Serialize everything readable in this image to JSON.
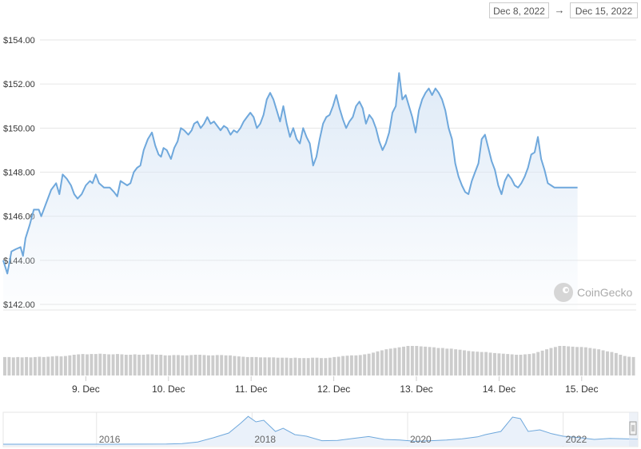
{
  "range_selector": {
    "start": "Dec 8, 2022",
    "arrow": "→",
    "end": "Dec 15, 2022"
  },
  "watermark": "CoinGecko",
  "colors": {
    "line": "#6fa8dc",
    "area_top": "#dbe8f6",
    "volume_bar": "#cccccc",
    "grid": "#e6e6e6",
    "navigator_line": "#6fa8dc"
  },
  "chart_data": {
    "type": "line",
    "title": "",
    "xlabel": "",
    "ylabel": "",
    "ylim": [
      142,
      155
    ],
    "y_ticks": [
      142,
      144,
      146,
      148,
      150,
      152,
      154
    ],
    "y_tick_labels": [
      "$142.00",
      "$144.00",
      "$146.00",
      "$148.00",
      "$150.00",
      "$152.00",
      "$154.00"
    ],
    "x_ticks": [
      {
        "day": 1,
        "label": "9. Dec"
      },
      {
        "day": 2,
        "label": "10. Dec"
      },
      {
        "day": 3,
        "label": "11. Dec"
      },
      {
        "day": 4,
        "label": "12. Dec"
      },
      {
        "day": 5,
        "label": "13. Dec"
      },
      {
        "day": 6,
        "label": "14. Dec"
      },
      {
        "day": 7,
        "label": "15. Dec"
      }
    ],
    "x_unit": "days after Dec 8, 2022 00:00",
    "series": [
      {
        "name": "Price",
        "points": [
          [
            0.0,
            144.0
          ],
          [
            0.05,
            143.4
          ],
          [
            0.1,
            144.4
          ],
          [
            0.15,
            144.5
          ],
          [
            0.21,
            144.6
          ],
          [
            0.24,
            144.2
          ],
          [
            0.27,
            145.0
          ],
          [
            0.32,
            145.6
          ],
          [
            0.37,
            146.3
          ],
          [
            0.43,
            146.3
          ],
          [
            0.46,
            146.0
          ],
          [
            0.52,
            146.6
          ],
          [
            0.58,
            147.2
          ],
          [
            0.64,
            147.5
          ],
          [
            0.68,
            147.0
          ],
          [
            0.72,
            147.9
          ],
          [
            0.77,
            147.7
          ],
          [
            0.82,
            147.4
          ],
          [
            0.86,
            147.0
          ],
          [
            0.9,
            146.8
          ],
          [
            0.95,
            147.0
          ],
          [
            1.0,
            147.4
          ],
          [
            1.05,
            147.6
          ],
          [
            1.08,
            147.5
          ],
          [
            1.12,
            147.9
          ],
          [
            1.16,
            147.5
          ],
          [
            1.19,
            147.4
          ],
          [
            1.22,
            147.3
          ],
          [
            1.25,
            147.3
          ],
          [
            1.29,
            147.3
          ],
          [
            1.34,
            147.1
          ],
          [
            1.38,
            146.9
          ],
          [
            1.42,
            147.6
          ],
          [
            1.46,
            147.5
          ],
          [
            1.5,
            147.4
          ],
          [
            1.54,
            147.5
          ],
          [
            1.58,
            148.0
          ],
          [
            1.62,
            148.2
          ],
          [
            1.66,
            148.3
          ],
          [
            1.7,
            149.0
          ],
          [
            1.75,
            149.5
          ],
          [
            1.8,
            149.8
          ],
          [
            1.84,
            149.2
          ],
          [
            1.88,
            148.8
          ],
          [
            1.91,
            148.7
          ],
          [
            1.94,
            149.1
          ],
          [
            1.98,
            149.0
          ],
          [
            2.03,
            148.6
          ],
          [
            2.07,
            149.1
          ],
          [
            2.11,
            149.4
          ],
          [
            2.15,
            150.0
          ],
          [
            2.19,
            149.9
          ],
          [
            2.24,
            149.7
          ],
          [
            2.28,
            149.9
          ],
          [
            2.31,
            150.2
          ],
          [
            2.35,
            150.3
          ],
          [
            2.39,
            150.0
          ],
          [
            2.43,
            150.2
          ],
          [
            2.47,
            150.5
          ],
          [
            2.51,
            150.2
          ],
          [
            2.55,
            150.3
          ],
          [
            2.59,
            150.1
          ],
          [
            2.63,
            149.9
          ],
          [
            2.67,
            150.1
          ],
          [
            2.71,
            150.0
          ],
          [
            2.75,
            149.7
          ],
          [
            2.79,
            149.9
          ],
          [
            2.83,
            149.8
          ],
          [
            2.87,
            150.0
          ],
          [
            2.91,
            150.3
          ],
          [
            2.95,
            150.5
          ],
          [
            2.99,
            150.7
          ],
          [
            3.03,
            150.5
          ],
          [
            3.07,
            150.0
          ],
          [
            3.11,
            150.2
          ],
          [
            3.15,
            150.6
          ],
          [
            3.19,
            151.3
          ],
          [
            3.23,
            151.6
          ],
          [
            3.27,
            151.3
          ],
          [
            3.31,
            150.8
          ],
          [
            3.35,
            150.3
          ],
          [
            3.39,
            151.0
          ],
          [
            3.43,
            150.2
          ],
          [
            3.47,
            149.6
          ],
          [
            3.51,
            150.0
          ],
          [
            3.55,
            149.5
          ],
          [
            3.59,
            149.3
          ],
          [
            3.63,
            150.0
          ],
          [
            3.67,
            149.6
          ],
          [
            3.71,
            149.3
          ],
          [
            3.75,
            148.3
          ],
          [
            3.79,
            148.7
          ],
          [
            3.83,
            149.5
          ],
          [
            3.87,
            150.2
          ],
          [
            3.91,
            150.5
          ],
          [
            3.95,
            150.6
          ],
          [
            3.99,
            151.0
          ],
          [
            4.03,
            151.5
          ],
          [
            4.07,
            150.9
          ],
          [
            4.11,
            150.4
          ],
          [
            4.15,
            150.0
          ],
          [
            4.19,
            150.3
          ],
          [
            4.23,
            150.5
          ],
          [
            4.27,
            151.0
          ],
          [
            4.31,
            151.2
          ],
          [
            4.35,
            150.9
          ],
          [
            4.39,
            150.2
          ],
          [
            4.43,
            150.6
          ],
          [
            4.47,
            150.4
          ],
          [
            4.51,
            150.0
          ],
          [
            4.55,
            149.4
          ],
          [
            4.59,
            149.0
          ],
          [
            4.63,
            149.3
          ],
          [
            4.67,
            149.8
          ],
          [
            4.71,
            150.7
          ],
          [
            4.75,
            151.0
          ],
          [
            4.79,
            152.5
          ],
          [
            4.83,
            151.3
          ],
          [
            4.87,
            151.5
          ],
          [
            4.91,
            151.0
          ],
          [
            4.95,
            150.5
          ],
          [
            4.99,
            149.8
          ],
          [
            5.03,
            150.8
          ],
          [
            5.07,
            151.3
          ],
          [
            5.11,
            151.6
          ],
          [
            5.15,
            151.8
          ],
          [
            5.19,
            151.5
          ],
          [
            5.23,
            151.8
          ],
          [
            5.27,
            151.6
          ],
          [
            5.31,
            151.3
          ],
          [
            5.35,
            150.8
          ],
          [
            5.39,
            150.0
          ],
          [
            5.43,
            149.5
          ],
          [
            5.47,
            148.4
          ],
          [
            5.51,
            147.8
          ],
          [
            5.55,
            147.4
          ],
          [
            5.59,
            147.1
          ],
          [
            5.63,
            147.0
          ],
          [
            5.67,
            147.6
          ],
          [
            5.71,
            148.0
          ],
          [
            5.75,
            148.4
          ],
          [
            5.79,
            149.5
          ],
          [
            5.83,
            149.7
          ],
          [
            5.87,
            149.1
          ],
          [
            5.91,
            148.5
          ],
          [
            5.95,
            148.1
          ],
          [
            5.99,
            147.4
          ],
          [
            6.03,
            147.0
          ],
          [
            6.07,
            147.6
          ],
          [
            6.11,
            147.9
          ],
          [
            6.15,
            147.7
          ],
          [
            6.19,
            147.4
          ],
          [
            6.23,
            147.3
          ],
          [
            6.27,
            147.5
          ],
          [
            6.31,
            147.8
          ],
          [
            6.35,
            148.2
          ],
          [
            6.39,
            148.8
          ],
          [
            6.43,
            148.9
          ],
          [
            6.47,
            149.6
          ],
          [
            6.51,
            148.6
          ],
          [
            6.55,
            148.1
          ],
          [
            6.59,
            147.5
          ],
          [
            6.63,
            147.4
          ],
          [
            6.67,
            147.3
          ],
          [
            6.71,
            147.3
          ],
          [
            6.75,
            147.3
          ],
          [
            6.79,
            147.3
          ],
          [
            6.83,
            147.3
          ],
          [
            6.87,
            147.3
          ],
          [
            6.91,
            147.3
          ],
          [
            6.95,
            147.3
          ]
        ]
      }
    ],
    "volume": {
      "note": "relative volume bars, 0-1",
      "values": [
        0.55,
        0.55,
        0.54,
        0.55,
        0.54,
        0.55,
        0.54,
        0.55,
        0.56,
        0.55,
        0.56,
        0.57,
        0.58,
        0.57,
        0.58,
        0.6,
        0.62,
        0.63,
        0.64,
        0.63,
        0.64,
        0.64,
        0.65,
        0.64,
        0.63,
        0.63,
        0.64,
        0.63,
        0.62,
        0.62,
        0.63,
        0.62,
        0.62,
        0.63,
        0.63,
        0.62,
        0.62,
        0.6,
        0.6,
        0.61,
        0.61,
        0.6,
        0.6,
        0.61,
        0.62,
        0.62,
        0.61,
        0.6,
        0.6,
        0.61,
        0.61,
        0.6,
        0.6,
        0.58,
        0.57,
        0.56,
        0.55,
        0.55,
        0.55,
        0.54,
        0.54,
        0.54,
        0.54,
        0.53,
        0.53,
        0.53,
        0.52,
        0.53,
        0.52,
        0.52,
        0.52,
        0.53,
        0.53,
        0.52,
        0.52,
        0.53,
        0.55,
        0.56,
        0.58,
        0.59,
        0.6,
        0.6,
        0.61,
        0.63,
        0.65,
        0.68,
        0.72,
        0.75,
        0.78,
        0.8,
        0.82,
        0.84,
        0.86,
        0.88,
        0.88,
        0.88,
        0.87,
        0.86,
        0.85,
        0.84,
        0.82,
        0.82,
        0.8,
        0.8,
        0.78,
        0.77,
        0.75,
        0.73,
        0.72,
        0.71,
        0.7,
        0.7,
        0.68,
        0.67,
        0.66,
        0.65,
        0.64,
        0.63,
        0.62,
        0.62,
        0.63,
        0.64,
        0.66,
        0.7,
        0.74,
        0.78,
        0.82,
        0.85,
        0.88,
        0.88,
        0.87,
        0.86,
        0.85,
        0.85,
        0.84,
        0.82,
        0.8,
        0.78,
        0.75,
        0.72,
        0.7,
        0.67,
        0.62,
        0.58,
        0.56,
        0.55
      ]
    }
  },
  "navigator": {
    "year_labels": [
      "2016",
      "2018",
      "2020",
      "2022"
    ],
    "years": [
      2016,
      2018,
      2020,
      2022
    ],
    "x_range": [
      2014.8,
      2022.96
    ],
    "points": [
      [
        2014.8,
        0.5
      ],
      [
        2015.0,
        0.5
      ],
      [
        2015.5,
        0.5
      ],
      [
        2016.0,
        0.5
      ],
      [
        2016.5,
        0.52
      ],
      [
        2016.9,
        0.55
      ],
      [
        2017.1,
        0.7
      ],
      [
        2017.3,
        1.2
      ],
      [
        2017.5,
        2.5
      ],
      [
        2017.7,
        4.0
      ],
      [
        2017.85,
        7.0
      ],
      [
        2017.95,
        9.2
      ],
      [
        2018.05,
        7.5
      ],
      [
        2018.15,
        8.0
      ],
      [
        2018.3,
        4.5
      ],
      [
        2018.4,
        5.5
      ],
      [
        2018.55,
        3.5
      ],
      [
        2018.7,
        3.0
      ],
      [
        2018.9,
        1.6
      ],
      [
        2019.1,
        1.7
      ],
      [
        2019.3,
        2.3
      ],
      [
        2019.5,
        2.9
      ],
      [
        2019.7,
        2.0
      ],
      [
        2019.9,
        1.8
      ],
      [
        2020.1,
        1.4
      ],
      [
        2020.3,
        1.6
      ],
      [
        2020.5,
        1.8
      ],
      [
        2020.7,
        2.2
      ],
      [
        2020.9,
        2.8
      ],
      [
        2021.0,
        3.5
      ],
      [
        2021.2,
        4.5
      ],
      [
        2021.35,
        9.0
      ],
      [
        2021.45,
        8.5
      ],
      [
        2021.55,
        4.5
      ],
      [
        2021.7,
        5.0
      ],
      [
        2021.85,
        3.8
      ],
      [
        2022.0,
        3.0
      ],
      [
        2022.2,
        2.6
      ],
      [
        2022.4,
        2.0
      ],
      [
        2022.6,
        2.3
      ],
      [
        2022.8,
        2.2
      ],
      [
        2022.96,
        2.1
      ]
    ]
  }
}
